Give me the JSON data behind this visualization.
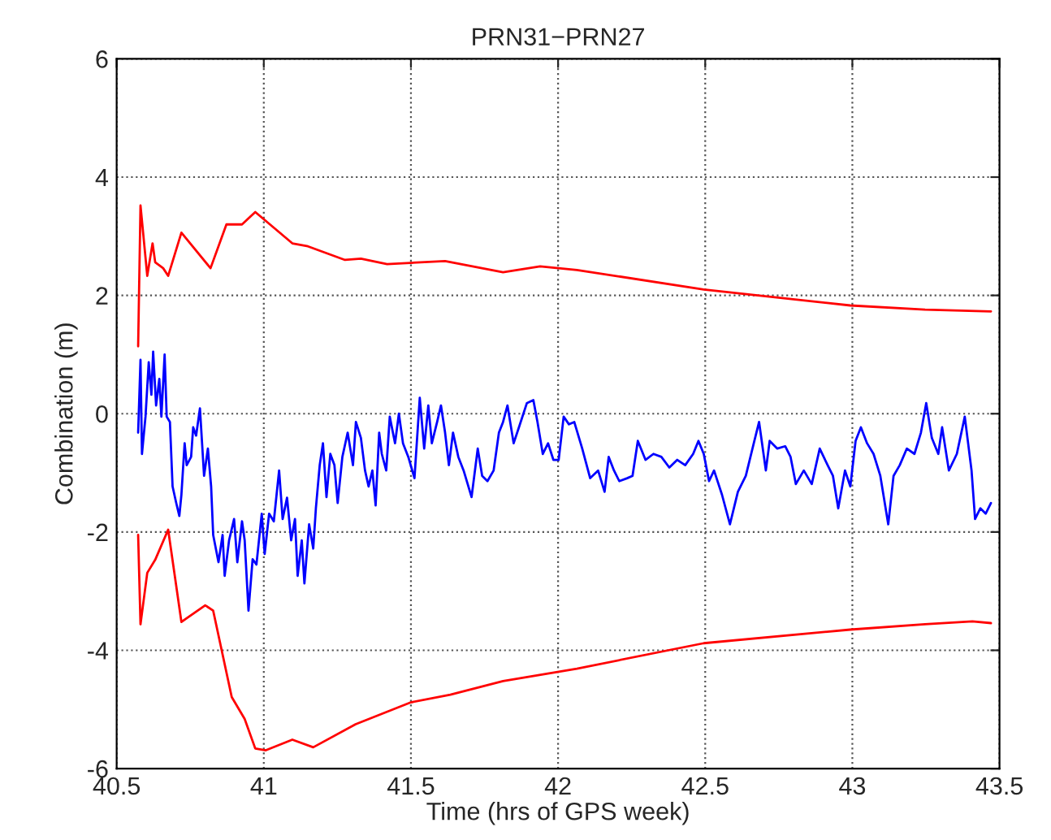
{
  "chart_data": {
    "type": "line",
    "title": "PRN31−PRN27",
    "xlabel": "Time (hrs of GPS week)",
    "ylabel": "Combination (m)",
    "xlim": [
      40.5,
      43.5
    ],
    "xticks": [
      40.5,
      41,
      41.5,
      42,
      42.5,
      43,
      43.5
    ],
    "ylim": [
      -6,
      6
    ],
    "yticks": [
      -6,
      -4,
      -2,
      0,
      2,
      4,
      6
    ],
    "grid": true,
    "line_style": "solid",
    "marker": "none",
    "series": [
      {
        "color": "#ff0000",
        "x": [
          40.573,
          40.581,
          40.604,
          40.622,
          40.631,
          40.658,
          40.675,
          40.72,
          40.819,
          40.873,
          40.926,
          40.971,
          41.097,
          41.15,
          41.276,
          41.33,
          41.419,
          41.616,
          41.813,
          41.939,
          42.064,
          42.495,
          42.993,
          43.247,
          43.471
        ],
        "values": [
          1.14,
          3.52,
          2.33,
          2.88,
          2.56,
          2.46,
          2.33,
          3.06,
          2.46,
          3.2,
          3.2,
          3.41,
          2.88,
          2.83,
          2.6,
          2.62,
          2.53,
          2.58,
          2.39,
          2.49,
          2.43,
          2.1,
          1.83,
          1.76,
          1.73
        ]
      },
      {
        "color": "#ff0000",
        "x": [
          40.573,
          40.581,
          40.604,
          40.631,
          40.675,
          40.72,
          40.801,
          40.828,
          40.891,
          40.935,
          40.971,
          41.007,
          41.097,
          41.168,
          41.312,
          41.5,
          41.634,
          41.813,
          42.064,
          42.495,
          42.993,
          43.247,
          43.408,
          43.471
        ],
        "values": [
          -2.05,
          -3.56,
          -2.69,
          -2.47,
          -1.96,
          -3.52,
          -3.24,
          -3.33,
          -4.79,
          -5.16,
          -5.66,
          -5.69,
          -5.51,
          -5.64,
          -5.25,
          -4.88,
          -4.75,
          -4.52,
          -4.31,
          -3.88,
          -3.65,
          -3.56,
          -3.51,
          -3.54
        ]
      },
      {
        "color": "#0000ff",
        "x": [
          40.573,
          40.581,
          40.586,
          40.598,
          40.609,
          40.618,
          40.624,
          40.634,
          40.645,
          40.652,
          40.663,
          40.67,
          40.681,
          40.69,
          40.702,
          40.713,
          40.72,
          40.731,
          40.738,
          40.753,
          40.76,
          40.77,
          40.783,
          40.797,
          40.81,
          40.821,
          40.828,
          40.846,
          40.86,
          40.867,
          40.882,
          40.899,
          40.91,
          40.926,
          40.935,
          40.948,
          40.962,
          40.975,
          40.993,
          41.003,
          41.018,
          41.034,
          41.052,
          41.064,
          41.079,
          41.093,
          41.106,
          41.115,
          41.129,
          41.138,
          41.154,
          41.168,
          41.177,
          41.19,
          41.201,
          41.213,
          41.226,
          41.24,
          41.251,
          41.267,
          41.285,
          41.303,
          41.313,
          41.33,
          41.344,
          41.356,
          41.369,
          41.38,
          41.392,
          41.401,
          41.416,
          41.428,
          41.446,
          41.459,
          41.473,
          41.491,
          41.512,
          41.53,
          41.545,
          41.559,
          41.571,
          41.589,
          41.602,
          41.616,
          41.629,
          41.643,
          41.661,
          41.679,
          41.706,
          41.727,
          41.742,
          41.76,
          41.781,
          41.799,
          41.813,
          41.828,
          41.849,
          41.867,
          41.894,
          41.916,
          41.93,
          41.948,
          41.966,
          41.984,
          42.002,
          42.019,
          42.037,
          42.055,
          42.082,
          42.109,
          42.136,
          42.158,
          42.172,
          42.19,
          42.208,
          42.235,
          42.253,
          42.271,
          42.297,
          42.324,
          42.351,
          42.378,
          42.405,
          42.432,
          42.459,
          42.477,
          42.495,
          42.513,
          42.53,
          42.557,
          42.584,
          42.611,
          42.638,
          42.665,
          42.683,
          42.706,
          42.719,
          42.745,
          42.772,
          42.79,
          42.808,
          42.835,
          42.862,
          42.889,
          42.916,
          42.934,
          42.952,
          42.975,
          42.993,
          43.011,
          43.029,
          43.05,
          43.072,
          43.095,
          43.122,
          43.14,
          43.161,
          43.185,
          43.211,
          43.233,
          43.251,
          43.27,
          43.292,
          43.305,
          43.328,
          43.355,
          43.382,
          43.405,
          43.417,
          43.435,
          43.453,
          43.471
        ],
        "values": [
          -0.32,
          0.91,
          -0.68,
          -0.05,
          0.87,
          0.32,
          1.05,
          0.14,
          0.59,
          -0.05,
          1.0,
          -0.05,
          -0.14,
          -1.23,
          -1.5,
          -1.73,
          -1.37,
          -0.5,
          -0.87,
          -0.73,
          -0.23,
          -0.37,
          0.09,
          -1.05,
          -0.59,
          -1.23,
          -2.05,
          -2.51,
          -2.05,
          -2.74,
          -2.14,
          -1.78,
          -2.51,
          -1.82,
          -2.14,
          -3.33,
          -2.46,
          -2.55,
          -1.69,
          -2.37,
          -1.69,
          -1.82,
          -0.96,
          -1.78,
          -1.42,
          -2.14,
          -1.78,
          -2.74,
          -2.14,
          -2.87,
          -1.87,
          -2.28,
          -1.6,
          -0.87,
          -0.5,
          -1.41,
          -0.68,
          -0.87,
          -1.51,
          -0.73,
          -0.32,
          -0.87,
          -0.14,
          -0.41,
          -0.96,
          -1.23,
          -0.96,
          -1.55,
          -0.32,
          -0.68,
          -0.96,
          -0.05,
          -0.5,
          0.0,
          -0.5,
          -0.73,
          -1.09,
          0.27,
          -0.59,
          0.14,
          -0.5,
          -0.14,
          0.14,
          -0.32,
          -0.87,
          -0.32,
          -0.73,
          -0.96,
          -1.41,
          -0.59,
          -1.05,
          -1.14,
          -0.96,
          -0.32,
          -0.14,
          0.14,
          -0.5,
          -0.23,
          0.18,
          0.23,
          -0.14,
          -0.68,
          -0.5,
          -0.78,
          -0.78,
          -0.05,
          -0.18,
          -0.14,
          -0.59,
          -1.09,
          -0.96,
          -1.32,
          -0.73,
          -0.96,
          -1.14,
          -1.09,
          -1.05,
          -0.46,
          -0.78,
          -0.68,
          -0.73,
          -0.91,
          -0.78,
          -0.87,
          -0.68,
          -0.46,
          -0.68,
          -1.14,
          -0.96,
          -1.37,
          -1.87,
          -1.32,
          -1.05,
          -0.5,
          -0.14,
          -0.96,
          -0.46,
          -0.59,
          -0.55,
          -0.73,
          -1.19,
          -0.96,
          -1.19,
          -0.59,
          -0.87,
          -1.05,
          -1.6,
          -0.96,
          -1.23,
          -0.46,
          -0.23,
          -0.5,
          -0.68,
          -1.05,
          -1.87,
          -1.05,
          -0.87,
          -0.59,
          -0.68,
          -0.32,
          0.18,
          -0.41,
          -0.68,
          -0.23,
          -0.96,
          -0.68,
          -0.05,
          -0.96,
          -1.78,
          -1.6,
          -1.69,
          -1.51
        ]
      }
    ]
  }
}
